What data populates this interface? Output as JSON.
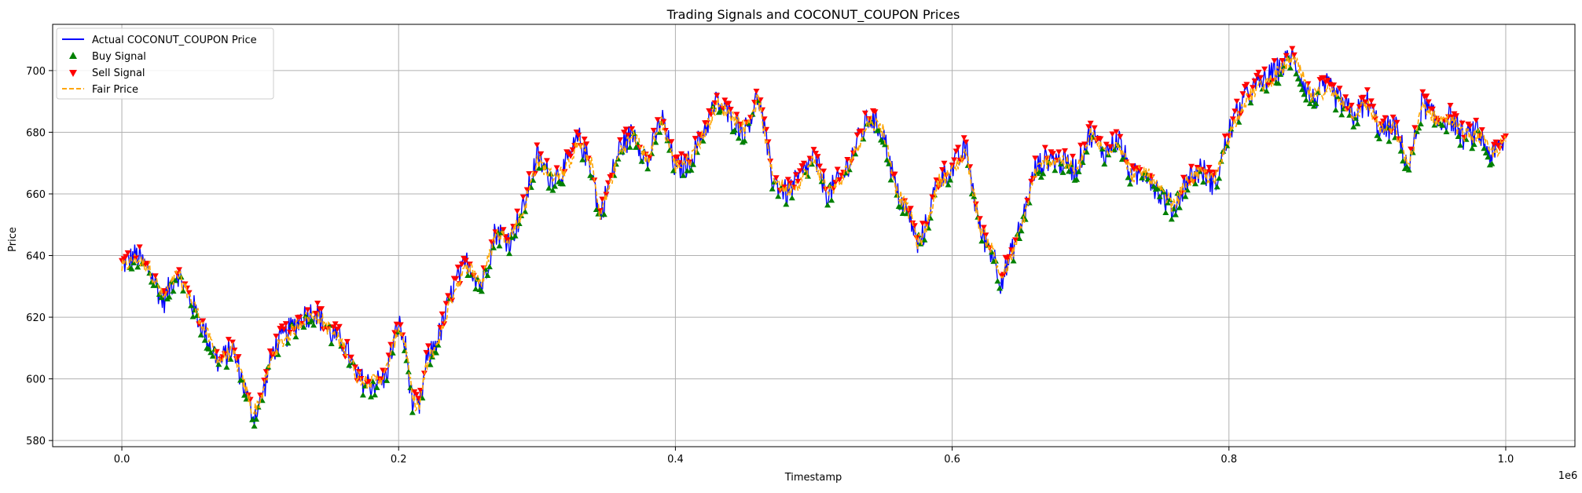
{
  "chart_data": {
    "type": "line",
    "title": "Trading Signals and COCONUT_COUPON Prices",
    "xlabel": "Timestamp",
    "ylabel": "Price",
    "x_offset_label": "1e6",
    "xlim": [
      -0.05,
      1.05
    ],
    "ylim": [
      578,
      715
    ],
    "x_ticks": [
      0.0,
      0.2,
      0.4,
      0.6,
      0.8,
      1.0
    ],
    "x_tick_labels": [
      "0.0",
      "0.2",
      "0.4",
      "0.6",
      "0.8",
      "1.0"
    ],
    "y_ticks": [
      580,
      600,
      620,
      640,
      660,
      680,
      700
    ],
    "y_tick_labels": [
      "580",
      "600",
      "620",
      "640",
      "660",
      "680",
      "700"
    ],
    "grid": true,
    "legend_position": "top-left",
    "legend": [
      {
        "label": "Actual COCONUT_COUPON Price",
        "kind": "line",
        "color": "#0000ff"
      },
      {
        "label": "Buy Signal",
        "kind": "marker-up",
        "color": "#008000"
      },
      {
        "label": "Sell Signal",
        "kind": "marker-down",
        "color": "#ff0000"
      },
      {
        "label": "Fair Price",
        "kind": "dashed-line",
        "color": "#ffa500"
      }
    ],
    "series": [
      {
        "name": "Actual COCONUT_COUPON Price",
        "color": "#0000ff",
        "x": [
          0.0,
          0.01,
          0.02,
          0.03,
          0.04,
          0.05,
          0.06,
          0.07,
          0.08,
          0.09,
          0.095,
          0.1,
          0.11,
          0.12,
          0.13,
          0.14,
          0.15,
          0.16,
          0.17,
          0.18,
          0.19,
          0.2,
          0.205,
          0.21,
          0.215,
          0.22,
          0.23,
          0.24,
          0.25,
          0.26,
          0.27,
          0.28,
          0.29,
          0.3,
          0.31,
          0.32,
          0.33,
          0.34,
          0.345,
          0.35,
          0.36,
          0.37,
          0.38,
          0.39,
          0.4,
          0.41,
          0.42,
          0.43,
          0.44,
          0.45,
          0.46,
          0.47,
          0.48,
          0.49,
          0.5,
          0.51,
          0.52,
          0.53,
          0.54,
          0.55,
          0.56,
          0.57,
          0.575,
          0.58,
          0.59,
          0.6,
          0.61,
          0.62,
          0.63,
          0.635,
          0.64,
          0.65,
          0.66,
          0.67,
          0.68,
          0.69,
          0.7,
          0.71,
          0.72,
          0.73,
          0.74,
          0.75,
          0.76,
          0.77,
          0.78,
          0.79,
          0.8,
          0.81,
          0.82,
          0.83,
          0.84,
          0.845,
          0.85,
          0.86,
          0.87,
          0.88,
          0.89,
          0.9,
          0.91,
          0.92,
          0.93,
          0.94,
          0.95,
          0.96,
          0.97,
          0.98,
          0.99,
          1.0
        ],
        "y": [
          637,
          640,
          635,
          625,
          635,
          625,
          615,
          605,
          610,
          595,
          588,
          592,
          610,
          615,
          620,
          622,
          615,
          612,
          600,
          598,
          600,
          618,
          610,
          592,
          590,
          605,
          615,
          630,
          638,
          630,
          648,
          645,
          655,
          672,
          665,
          668,
          678,
          668,
          652,
          660,
          675,
          680,
          670,
          685,
          668,
          670,
          680,
          690,
          685,
          680,
          692,
          665,
          660,
          665,
          672,
          660,
          665,
          675,
          685,
          680,
          660,
          652,
          643,
          648,
          665,
          668,
          675,
          648,
          640,
          632,
          637,
          650,
          668,
          672,
          670,
          668,
          680,
          673,
          678,
          665,
          668,
          660,
          655,
          665,
          668,
          663,
          680,
          690,
          695,
          698,
          702,
          705,
          700,
          690,
          695,
          690,
          685,
          690,
          680,
          682,
          668,
          690,
          683,
          685,
          678,
          680,
          672,
          678
        ]
      },
      {
        "name": "Fair Price",
        "color": "#ffa500",
        "x": [
          0.0,
          0.01,
          0.02,
          0.03,
          0.04,
          0.05,
          0.06,
          0.07,
          0.08,
          0.09,
          0.095,
          0.1,
          0.11,
          0.12,
          0.13,
          0.14,
          0.15,
          0.16,
          0.17,
          0.18,
          0.19,
          0.2,
          0.205,
          0.21,
          0.215,
          0.22,
          0.23,
          0.24,
          0.25,
          0.26,
          0.27,
          0.28,
          0.29,
          0.3,
          0.31,
          0.32,
          0.33,
          0.34,
          0.345,
          0.35,
          0.36,
          0.37,
          0.38,
          0.39,
          0.4,
          0.41,
          0.42,
          0.43,
          0.44,
          0.45,
          0.46,
          0.47,
          0.48,
          0.49,
          0.5,
          0.51,
          0.52,
          0.53,
          0.54,
          0.55,
          0.56,
          0.57,
          0.575,
          0.58,
          0.59,
          0.6,
          0.61,
          0.62,
          0.63,
          0.635,
          0.64,
          0.65,
          0.66,
          0.67,
          0.68,
          0.69,
          0.7,
          0.71,
          0.72,
          0.73,
          0.74,
          0.75,
          0.76,
          0.77,
          0.78,
          0.79,
          0.8,
          0.81,
          0.82,
          0.83,
          0.84,
          0.845,
          0.85,
          0.86,
          0.87,
          0.88,
          0.89,
          0.9,
          0.91,
          0.92,
          0.93,
          0.94,
          0.95,
          0.96,
          0.97,
          0.98,
          0.99,
          1.0
        ],
        "y": [
          636,
          639,
          636,
          626,
          634,
          626,
          616,
          606,
          609,
          596,
          589,
          593,
          609,
          614,
          619,
          621,
          616,
          611,
          601,
          599,
          601,
          617,
          611,
          593,
          591,
          604,
          614,
          629,
          637,
          631,
          647,
          646,
          654,
          671,
          666,
          667,
          677,
          669,
          653,
          659,
          674,
          679,
          671,
          684,
          669,
          671,
          679,
          689,
          686,
          681,
          691,
          666,
          661,
          664,
          671,
          661,
          664,
          674,
          684,
          681,
          661,
          653,
          644,
          647,
          664,
          667,
          674,
          649,
          641,
          633,
          636,
          649,
          667,
          671,
          671,
          667,
          679,
          674,
          677,
          666,
          667,
          661,
          656,
          664,
          667,
          664,
          679,
          689,
          694,
          697,
          701,
          704,
          701,
          691,
          694,
          691,
          686,
          689,
          681,
          681,
          669,
          689,
          684,
          684,
          679,
          679,
          673,
          677
        ]
      }
    ]
  }
}
